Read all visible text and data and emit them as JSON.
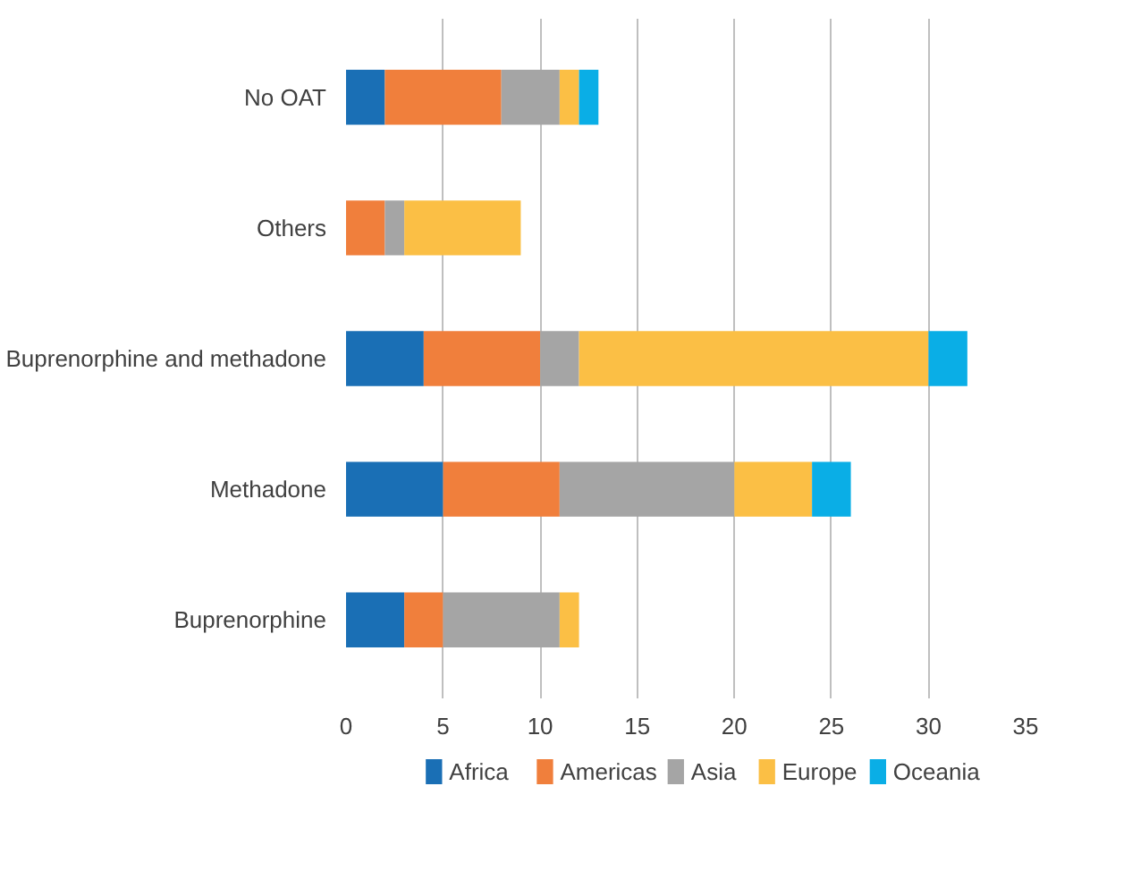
{
  "chart_data": {
    "type": "bar",
    "orientation": "horizontal",
    "stacked": true,
    "categories": [
      "No OAT",
      "Others",
      "Buprenorphine and methadone",
      "Methadone",
      "Buprenorphine"
    ],
    "series": [
      {
        "name": "Africa",
        "color": "#1a6fb5",
        "values": [
          2,
          0,
          4,
          5,
          3
        ]
      },
      {
        "name": "Americas",
        "color": "#f07f3c",
        "values": [
          6,
          2,
          6,
          6,
          2
        ]
      },
      {
        "name": "Asia",
        "color": "#a5a5a5",
        "values": [
          3,
          1,
          2,
          9,
          6
        ]
      },
      {
        "name": "Europe",
        "color": "#fbbf45",
        "values": [
          1,
          6,
          18,
          4,
          1
        ]
      },
      {
        "name": "Oceania",
        "color": "#0aaee6",
        "values": [
          1,
          0,
          2,
          2,
          0
        ]
      }
    ],
    "xlim": [
      0,
      35
    ],
    "xticks": [
      0,
      5,
      10,
      15,
      20,
      25,
      30,
      35
    ],
    "grid": "x",
    "legend": "bottom"
  }
}
